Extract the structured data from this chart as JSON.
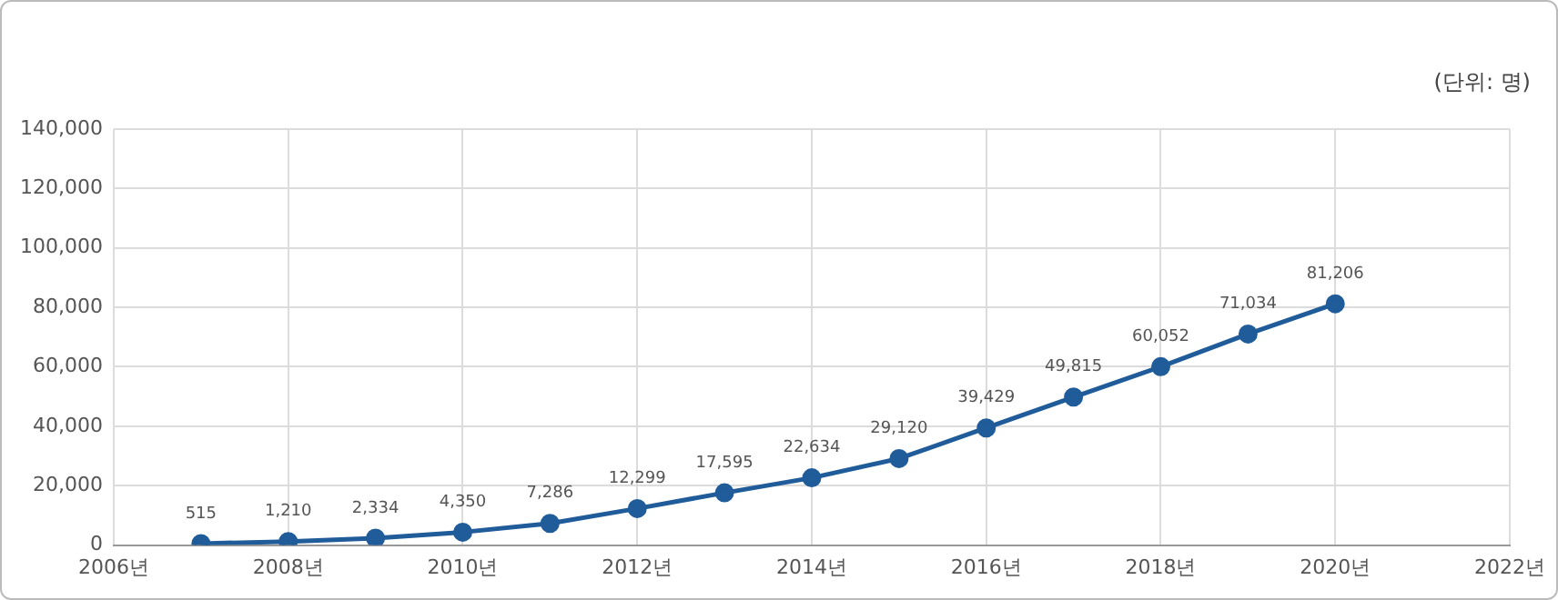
{
  "chart_data": {
    "type": "line",
    "annotations": [
      "(단위: 명)"
    ],
    "x": [
      2007,
      2008,
      2009,
      2010,
      2011,
      2012,
      2013,
      2014,
      2015,
      2016,
      2017,
      2018,
      2019,
      2020
    ],
    "series": [
      {
        "color": "#1f5c99",
        "values": [
          515,
          1210,
          2334,
          4350,
          7286,
          12299,
          17595,
          22634,
          29120,
          39429,
          49815,
          60052,
          71034,
          81206
        ],
        "value_labels": [
          "515",
          "1,210",
          "2,334",
          "4,350",
          "7,286",
          "12,299",
          "17,595",
          "22,634",
          "29,120",
          "39,429",
          "49,815",
          "60,052",
          "71,034",
          "81,206"
        ]
      }
    ],
    "xlim": [
      2006,
      2022
    ],
    "xticks": [
      {
        "value": 2006,
        "label": "2006년"
      },
      {
        "value": 2008,
        "label": "2008년"
      },
      {
        "value": 2010,
        "label": "2010년"
      },
      {
        "value": 2012,
        "label": "2012년"
      },
      {
        "value": 2014,
        "label": "2014년"
      },
      {
        "value": 2016,
        "label": "2016년"
      },
      {
        "value": 2018,
        "label": "2018년"
      },
      {
        "value": 2020,
        "label": "2020년"
      },
      {
        "value": 2022,
        "label": "2022년"
      }
    ],
    "ylim": [
      0,
      140000
    ],
    "yticks": [
      {
        "value": 0,
        "label": "0"
      },
      {
        "value": 20000,
        "label": "20,000"
      },
      {
        "value": 40000,
        "label": "40,000"
      },
      {
        "value": 60000,
        "label": "60,000"
      },
      {
        "value": 80000,
        "label": "80,000"
      },
      {
        "value": 100000,
        "label": "100,000"
      },
      {
        "value": 120000,
        "label": "120,000"
      },
      {
        "value": 140000,
        "label": "140,000"
      }
    ],
    "grid": true,
    "legend": false,
    "marker": "circle",
    "line_style": "solid"
  }
}
